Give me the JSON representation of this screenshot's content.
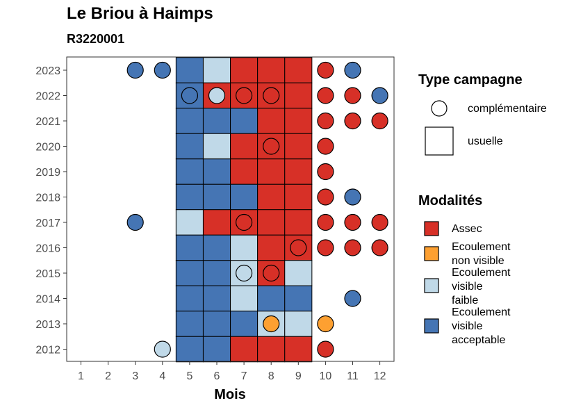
{
  "title": "Le Briou à Haimps",
  "subtitle": "R3220001",
  "colors": {
    "assec": "#D73027",
    "ecoulement_non_visible": "#FDA031",
    "ecoulement_visible_faible": "#C0D9E8",
    "ecoulement_visible_acceptable": "#4575B4"
  },
  "legend": {
    "type_title": "Type campagne",
    "type_items": [
      {
        "label": "complémentaire",
        "shape": "circle"
      },
      {
        "label": "usuelle",
        "shape": "square"
      }
    ],
    "mod_title": "Modalités",
    "mod_items": [
      {
        "key": "A",
        "lines": [
          "Assec"
        ],
        "color": "#D73027"
      },
      {
        "key": "N",
        "lines": [
          "Ecoulement",
          "non visible"
        ],
        "color": "#FDA031"
      },
      {
        "key": "F",
        "lines": [
          "Ecoulement",
          "visible",
          "faible"
        ],
        "color": "#C0D9E8"
      },
      {
        "key": "V",
        "lines": [
          "Ecoulement",
          "visible",
          "acceptable"
        ],
        "color": "#4575B4"
      }
    ]
  },
  "chart_data": {
    "type": "heatmap",
    "title": "Le Briou à Haimps",
    "subtitle": "R3220001",
    "xlabel": "Mois",
    "ylabel": "",
    "x_ticks": [
      "1",
      "2",
      "3",
      "4",
      "5",
      "6",
      "7",
      "8",
      "9",
      "10",
      "11",
      "12"
    ],
    "y_ticks": [
      "2012",
      "2013",
      "2014",
      "2015",
      "2016",
      "2017",
      "2018",
      "2019",
      "2020",
      "2021",
      "2022",
      "2023"
    ],
    "category_codes": {
      "A": "Assec",
      "N": "Ecoulement non visible",
      "F": "Ecoulement visible faible",
      "V": "Ecoulement visible acceptable"
    },
    "usuelle": [
      {
        "year": 2023,
        "months": {
          "5": "V",
          "6": "F",
          "7": "A",
          "8": "A",
          "9": "A"
        }
      },
      {
        "year": 2022,
        "months": {
          "5": "V",
          "6": "A",
          "7": "A",
          "8": "A",
          "9": "A"
        }
      },
      {
        "year": 2021,
        "months": {
          "5": "V",
          "6": "V",
          "7": "V",
          "8": "A",
          "9": "A"
        }
      },
      {
        "year": 2020,
        "months": {
          "5": "V",
          "6": "F",
          "7": "A",
          "8": "A",
          "9": "A"
        }
      },
      {
        "year": 2019,
        "months": {
          "5": "V",
          "6": "V",
          "7": "A",
          "8": "A",
          "9": "A"
        }
      },
      {
        "year": 2018,
        "months": {
          "5": "V",
          "6": "V",
          "7": "V",
          "8": "A",
          "9": "A"
        }
      },
      {
        "year": 2017,
        "months": {
          "5": "F",
          "6": "A",
          "7": "A",
          "8": "A",
          "9": "A"
        }
      },
      {
        "year": 2016,
        "months": {
          "5": "V",
          "6": "V",
          "7": "F",
          "8": "A",
          "9": "A"
        }
      },
      {
        "year": 2015,
        "months": {
          "5": "V",
          "6": "V",
          "7": "F",
          "8": "A",
          "9": "F"
        }
      },
      {
        "year": 2014,
        "months": {
          "5": "V",
          "6": "V",
          "7": "F",
          "8": "V",
          "9": "V"
        }
      },
      {
        "year": 2013,
        "months": {
          "5": "V",
          "6": "V",
          "7": "V",
          "8": "F",
          "9": "F"
        }
      },
      {
        "year": 2012,
        "months": {
          "5": "V",
          "6": "V",
          "7": "A",
          "8": "A",
          "9": "A"
        }
      }
    ],
    "complementaire": [
      {
        "year": 2023,
        "month": 3,
        "code": "V"
      },
      {
        "year": 2023,
        "month": 4,
        "code": "V"
      },
      {
        "year": 2023,
        "month": 10,
        "code": "A"
      },
      {
        "year": 2023,
        "month": 11,
        "code": "V"
      },
      {
        "year": 2022,
        "month": 5,
        "code": "V"
      },
      {
        "year": 2022,
        "month": 6,
        "code": "F"
      },
      {
        "year": 2022,
        "month": 7,
        "code": "A"
      },
      {
        "year": 2022,
        "month": 8,
        "code": "A"
      },
      {
        "year": 2022,
        "month": 10,
        "code": "A"
      },
      {
        "year": 2022,
        "month": 11,
        "code": "A"
      },
      {
        "year": 2022,
        "month": 12,
        "code": "V"
      },
      {
        "year": 2021,
        "month": 10,
        "code": "A"
      },
      {
        "year": 2021,
        "month": 11,
        "code": "A"
      },
      {
        "year": 2021,
        "month": 12,
        "code": "A"
      },
      {
        "year": 2020,
        "month": 8,
        "code": "A"
      },
      {
        "year": 2020,
        "month": 10,
        "code": "A"
      },
      {
        "year": 2019,
        "month": 10,
        "code": "A"
      },
      {
        "year": 2018,
        "month": 10,
        "code": "A"
      },
      {
        "year": 2018,
        "month": 11,
        "code": "V"
      },
      {
        "year": 2017,
        "month": 3,
        "code": "V"
      },
      {
        "year": 2017,
        "month": 7,
        "code": "A"
      },
      {
        "year": 2017,
        "month": 10,
        "code": "A"
      },
      {
        "year": 2017,
        "month": 11,
        "code": "A"
      },
      {
        "year": 2017,
        "month": 12,
        "code": "A"
      },
      {
        "year": 2016,
        "month": 9,
        "code": "A"
      },
      {
        "year": 2016,
        "month": 10,
        "code": "A"
      },
      {
        "year": 2016,
        "month": 11,
        "code": "A"
      },
      {
        "year": 2016,
        "month": 12,
        "code": "A"
      },
      {
        "year": 2015,
        "month": 7,
        "code": "F"
      },
      {
        "year": 2015,
        "month": 8,
        "code": "A"
      },
      {
        "year": 2014,
        "month": 11,
        "code": "V"
      },
      {
        "year": 2013,
        "month": 8,
        "code": "N"
      },
      {
        "year": 2013,
        "month": 10,
        "code": "N"
      },
      {
        "year": 2012,
        "month": 4,
        "code": "F"
      },
      {
        "year": 2012,
        "month": 10,
        "code": "A"
      }
    ]
  }
}
